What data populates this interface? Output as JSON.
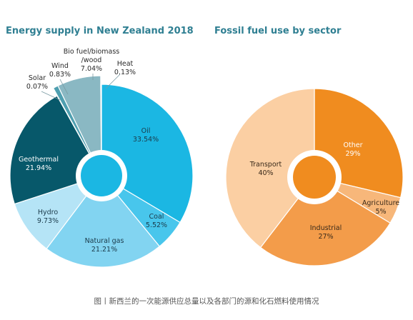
{
  "caption": "图丨新西兰的一次能源供应总量以及各部门的源和化石燃料使用情况",
  "chart_data": [
    {
      "type": "pie",
      "title": "Energy supply in New Zealand 2018",
      "slices": [
        {
          "label": "Oil",
          "value": 33.54,
          "value_label": "33.54%",
          "color": "#1bb7e3"
        },
        {
          "label": "Coal",
          "value": 5.52,
          "value_label": "5.52%",
          "color": "#48c6ec"
        },
        {
          "label": "Natural gas",
          "value": 21.21,
          "value_label": "21.21%",
          "color": "#82d4f1"
        },
        {
          "label": "Hydro",
          "value": 9.73,
          "value_label": "9.73%",
          "color": "#b5e4f6"
        },
        {
          "label": "Geothermal",
          "value": 21.94,
          "value_label": "21.94%",
          "color": "#07586a"
        },
        {
          "label": "Solar",
          "value": 0.07,
          "value_label": "0.07%",
          "color": "#2a8fa3"
        },
        {
          "label": "Wind",
          "value": 0.83,
          "value_label": "0.83%",
          "color": "#4f9fb0"
        },
        {
          "label": "Bio fuel/biomass /wood",
          "value": 7.04,
          "value_label": "7.04%",
          "color": "#8ab8c3"
        },
        {
          "label": "Heat",
          "value": 0.13,
          "value_label": "0.13%",
          "color": "#8fb8c1"
        }
      ]
    },
    {
      "type": "pie",
      "title": "Fossil fuel use by sector",
      "slices": [
        {
          "label": "Other",
          "value": 29,
          "value_label": "29%",
          "color": "#f08c1f"
        },
        {
          "label": "Agriculture",
          "value": 5,
          "value_label": "5%",
          "color": "#f7b77a"
        },
        {
          "label": "Industrial",
          "value": 27,
          "value_label": "27%",
          "color": "#f39c4a"
        },
        {
          "label": "Transport",
          "value": 40,
          "value_label": "40%",
          "color": "#fbcfa3"
        }
      ]
    }
  ]
}
